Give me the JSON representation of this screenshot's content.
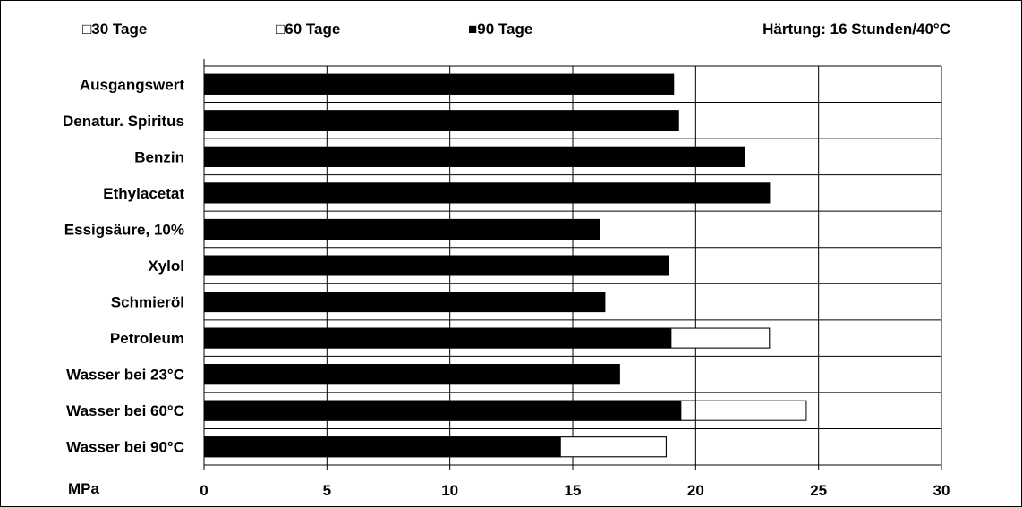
{
  "chart_data": {
    "type": "bar",
    "orientation": "horizontal",
    "legend": {
      "placement": "top",
      "entries": [
        {
          "glyph": "□",
          "label": "30 Tage"
        },
        {
          "glyph": "□",
          "label": "60 Tage"
        },
        {
          "glyph": "■",
          "label": "90 Tage"
        }
      ]
    },
    "annotation": "Härtung: 16 Stunden/40°C",
    "xlabel": "MPa",
    "xlim": [
      0,
      30
    ],
    "xticks": [
      0,
      5,
      10,
      15,
      20,
      25,
      30
    ],
    "grid": true,
    "colors": {
      "30 Tage": "#ffffff",
      "60 Tage": "#ffffff",
      "90 Tage": "#000000"
    },
    "categories": [
      "Ausgangswert",
      "Denatur. Spiritus",
      "Benzin",
      "Ethylacetat",
      "Essigsäure, 10%",
      "Xylol",
      "Schmieröl",
      "Petroleum",
      "Wasser bei 23°C",
      "Wasser bei 60°C",
      "Wasser bei 90°C"
    ],
    "series": [
      {
        "name": "30 Tage",
        "values": [
          19.1,
          19.3,
          22.0,
          23.0,
          16.1,
          18.9,
          16.3,
          23.0,
          16.9,
          24.5,
          18.8
        ]
      },
      {
        "name": "60 Tage",
        "values": [
          19.1,
          19.3,
          22.0,
          23.0,
          16.1,
          18.9,
          16.3,
          23.0,
          16.9,
          20.0,
          18.8
        ]
      },
      {
        "name": "90 Tage",
        "values": [
          19.1,
          19.3,
          22.0,
          23.0,
          16.1,
          18.9,
          16.3,
          19.0,
          16.9,
          19.4,
          14.5
        ]
      }
    ]
  }
}
